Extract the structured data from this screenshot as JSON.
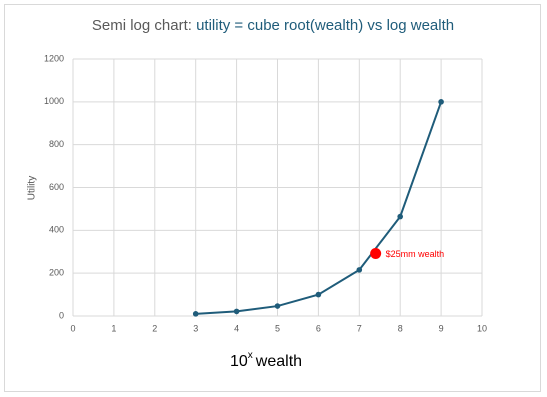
{
  "chart_data": {
    "type": "line",
    "title": [
      "Semi log chart:",
      "utility = cube root(wealth) vs log wealth"
    ],
    "x_label": {
      "base": "10",
      "exponent": "x",
      "text": "wealth"
    },
    "y_label": "Utility",
    "x": [
      3,
      4,
      5,
      6,
      7,
      8,
      9
    ],
    "series": [
      {
        "name": "utility",
        "color": "#1f5c7a",
        "values": [
          10,
          21.5,
          46.4,
          100,
          215.4,
          464.2,
          1000
        ]
      }
    ],
    "annotation": {
      "x": 7.4,
      "y": 292,
      "label": "$25mm wealth",
      "color": "#ff0000"
    },
    "xlim": [
      0,
      10
    ],
    "xticks": [
      0,
      1,
      2,
      3,
      4,
      5,
      6,
      7,
      8,
      9,
      10
    ],
    "ylim": [
      0,
      1200
    ],
    "yticks": [
      0,
      200,
      400,
      600,
      800,
      1000,
      1200
    ],
    "grid": true
  }
}
